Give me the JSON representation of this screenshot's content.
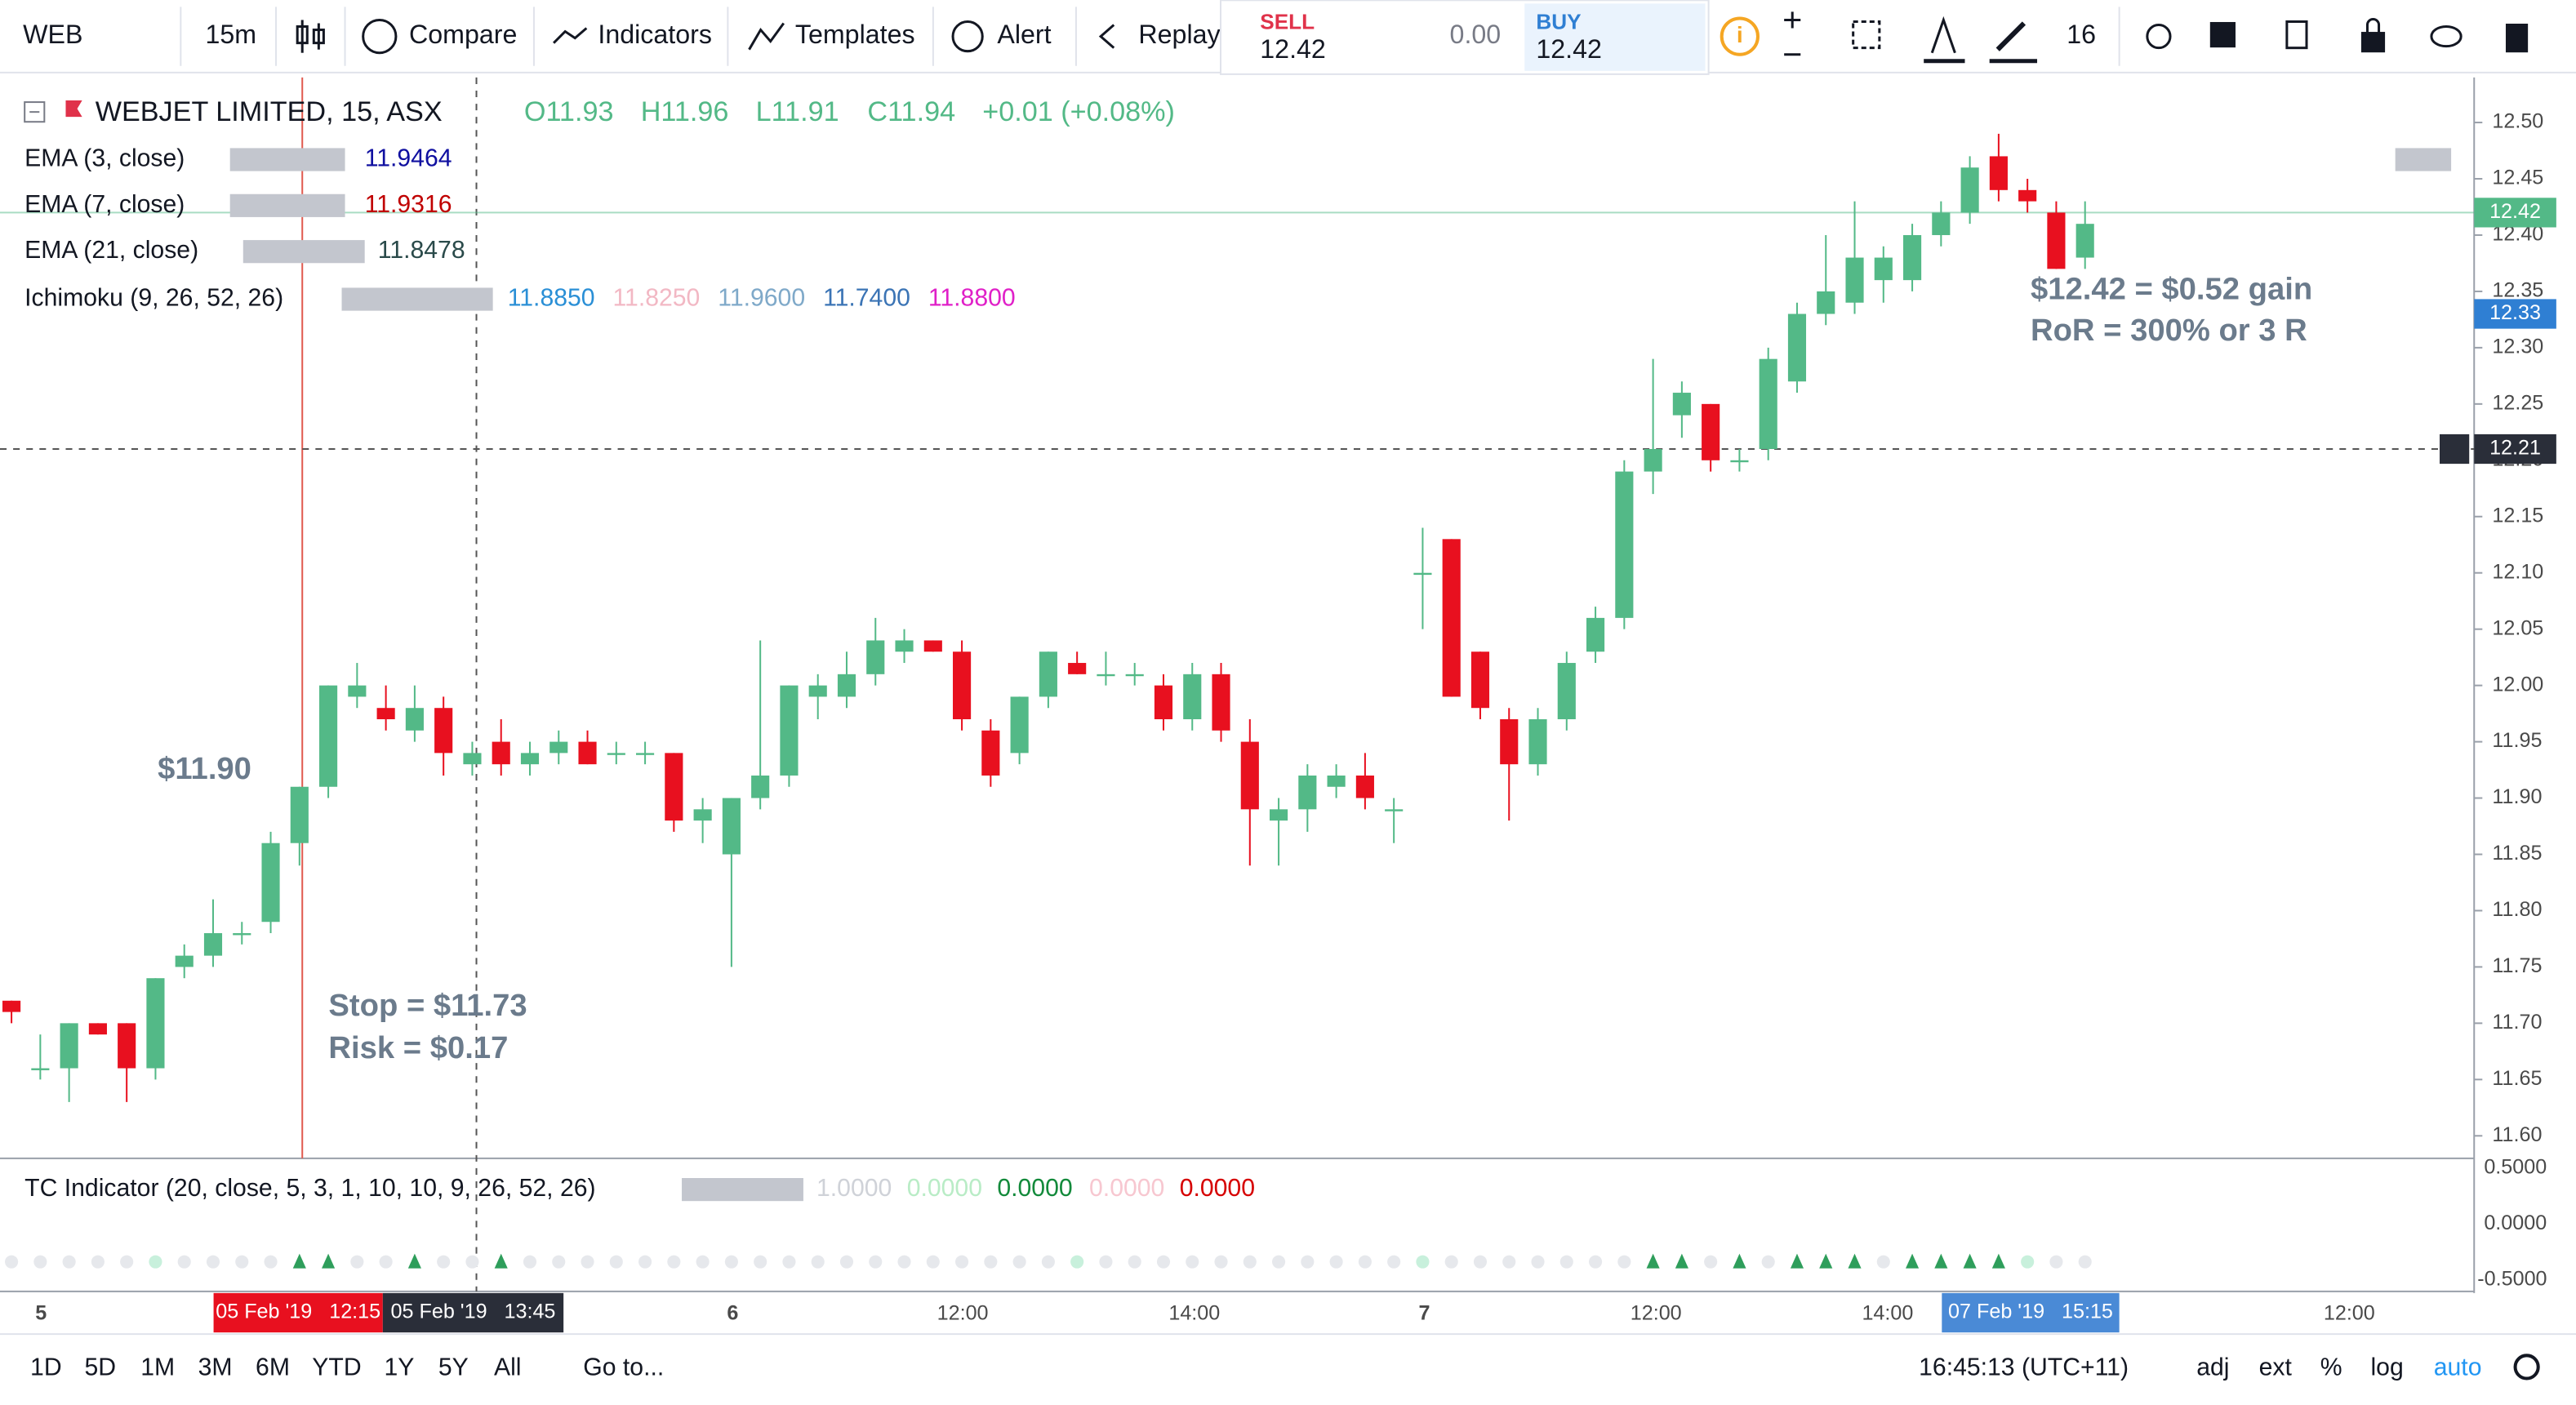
{
  "toolbar": {
    "symbol": "WEB",
    "interval": "15m",
    "compare": "Compare",
    "indicators": "Indicators",
    "templates": "Templates",
    "alert": "Alert",
    "replay": "Replay",
    "sell_label": "SELL",
    "sell_price": "12.42",
    "spread": "0.00",
    "buy_label": "BUY",
    "buy_price": "12.42",
    "font_size": "16"
  },
  "legend": {
    "title": "WEBJET LIMITED, 15, ASX",
    "open": "O11.93",
    "high": "H11.96",
    "low": "L11.91",
    "close": "C11.94",
    "change": "+0.01 (+0.08%)",
    "indicators": [
      {
        "name": "EMA (3, close)",
        "values": [
          "11.9464"
        ]
      },
      {
        "name": "EMA (7, close)",
        "values": [
          "11.9316"
        ]
      },
      {
        "name": "EMA (21, close)",
        "values": [
          "11.8478"
        ]
      },
      {
        "name": "Ichimoku (9, 26, 52, 26)",
        "values": [
          "11.8850",
          "11.8250",
          "11.9600",
          "11.7400",
          "11.8800"
        ]
      }
    ]
  },
  "annotations": [
    "$11.90",
    "Stop = $11.73",
    "Risk = $0.17",
    "$12.42 = $0.52 gain",
    "RoR = 300% or 3 R"
  ],
  "chart_data": {
    "type": "candlestick",
    "up_color": "#53b987",
    "down_color": "#e8101f",
    "open": [
      11.72,
      11.66,
      11.66,
      11.7,
      11.7,
      11.66,
      11.75,
      11.76,
      11.78,
      11.79,
      11.86,
      11.91,
      11.99,
      11.98,
      11.96,
      11.98,
      11.93,
      11.95,
      11.93,
      11.94,
      11.95,
      11.94,
      11.94,
      11.94,
      11.88,
      11.85,
      11.9,
      11.92,
      11.99,
      11.99,
      12.01,
      12.03,
      12.04,
      12.03,
      11.96,
      11.94,
      11.99,
      12.02,
      12.01,
      12.01,
      12.0,
      11.97,
      12.01,
      11.95,
      11.88,
      11.89,
      11.91,
      11.92,
      11.89,
      12.1,
      12.13,
      12.03,
      11.97,
      11.93,
      11.97,
      12.03,
      12.06,
      12.19,
      12.24,
      12.25,
      12.2,
      12.21,
      12.27,
      12.33,
      12.34,
      12.36,
      12.36,
      12.4,
      12.42,
      12.47,
      12.44,
      12.42,
      12.38
    ],
    "high": [
      11.72,
      11.69,
      11.7,
      11.7,
      11.7,
      11.74,
      11.77,
      11.81,
      11.79,
      11.87,
      11.91,
      12.0,
      12.02,
      12.0,
      12.0,
      11.99,
      11.95,
      11.97,
      11.95,
      11.96,
      11.96,
      11.95,
      11.95,
      11.94,
      11.9,
      11.9,
      12.04,
      12.0,
      12.01,
      12.03,
      12.06,
      12.05,
      12.04,
      12.04,
      11.97,
      11.99,
      12.03,
      12.03,
      12.03,
      12.02,
      12.01,
      12.02,
      12.02,
      11.97,
      11.9,
      11.93,
      11.93,
      11.94,
      11.9,
      12.14,
      12.13,
      12.03,
      11.98,
      11.98,
      12.03,
      12.07,
      12.2,
      12.29,
      12.27,
      12.25,
      12.21,
      12.3,
      12.34,
      12.4,
      12.43,
      12.39,
      12.41,
      12.43,
      12.47,
      12.49,
      12.45,
      12.43,
      12.43
    ],
    "low": [
      11.7,
      11.65,
      11.63,
      11.69,
      11.63,
      11.65,
      11.74,
      11.75,
      11.77,
      11.78,
      11.84,
      11.9,
      11.98,
      11.96,
      11.95,
      11.92,
      11.92,
      11.92,
      11.92,
      11.93,
      11.93,
      11.93,
      11.93,
      11.87,
      11.86,
      11.75,
      11.89,
      11.91,
      11.97,
      11.98,
      12.0,
      12.02,
      12.03,
      11.96,
      11.91,
      11.93,
      11.98,
      12.01,
      12.0,
      12.0,
      11.96,
      11.96,
      11.95,
      11.84,
      11.84,
      11.87,
      11.9,
      11.89,
      11.86,
      12.05,
      11.99,
      11.97,
      11.88,
      11.92,
      11.96,
      12.02,
      12.05,
      12.17,
      12.22,
      12.19,
      12.19,
      12.2,
      12.26,
      12.32,
      12.33,
      12.34,
      12.35,
      12.39,
      12.41,
      12.43,
      12.42,
      12.37,
      12.37
    ],
    "close": [
      11.71,
      11.66,
      11.7,
      11.69,
      11.66,
      11.74,
      11.76,
      11.78,
      11.78,
      11.86,
      11.91,
      12.0,
      12.0,
      11.97,
      11.98,
      11.94,
      11.94,
      11.93,
      11.94,
      11.95,
      11.93,
      11.94,
      11.94,
      11.88,
      11.89,
      11.9,
      11.92,
      12.0,
      12.0,
      12.01,
      12.04,
      12.04,
      12.03,
      11.97,
      11.92,
      11.99,
      12.03,
      12.01,
      12.01,
      12.01,
      11.97,
      12.01,
      11.96,
      11.89,
      11.89,
      11.92,
      11.92,
      11.9,
      11.89,
      12.1,
      11.99,
      11.98,
      11.93,
      11.97,
      12.02,
      12.06,
      12.19,
      12.21,
      12.26,
      12.2,
      12.2,
      12.29,
      12.33,
      12.35,
      12.38,
      12.38,
      12.4,
      12.42,
      12.46,
      12.44,
      12.43,
      12.37,
      12.41
    ],
    "ylim": [
      11.58,
      12.54
    ],
    "yticks": [
      {
        "value": 11.6,
        "label": "11.60"
      },
      11.65,
      {
        "value": 11.7,
        "label": "11.70"
      },
      11.75,
      {
        "value": 11.8,
        "label": "11.80"
      },
      11.85,
      {
        "value": 11.9,
        "label": "11.90"
      },
      11.95,
      {
        "value": 12,
        "label": "12.00"
      },
      12.05,
      {
        "value": 12.1,
        "label": "12.10"
      },
      12.15,
      {
        "value": 12.2,
        "label": "12.20"
      },
      12.25,
      {
        "value": 12.3,
        "label": "12.30"
      },
      12.35,
      {
        "value": 12.4,
        "label": "12.40"
      },
      12.45,
      {
        "value": 12.5,
        "label": "12.50"
      }
    ],
    "markers": [
      12.42,
      12.33,
      12.21
    ],
    "marker_colors": [
      "#53b987",
      "#2f7fd3",
      "#2a2e39"
    ]
  },
  "time_axis": {
    "labels": [
      "5",
      "6",
      "12:00",
      "14:00",
      "7",
      "12:00",
      "14:00",
      "12:00"
    ],
    "cursor_labels": [
      "05 Feb '19   12:15",
      "05 Feb '19   13:45",
      "07 Feb '19   15:15"
    ]
  },
  "tc_pane": {
    "title": "TC Indicator (20, close, 5, 3, 1, 10, 10, 9, 26, 52, 26)",
    "values": [
      "1.0000",
      "0.0000",
      "0.0000",
      "0.0000",
      "0.0000"
    ],
    "axis": [
      "0.5000",
      "0.0000",
      "-0.5000"
    ]
  },
  "bottom_bar": {
    "ranges": [
      "1D",
      "5D",
      "1M",
      "3M",
      "6M",
      "YTD",
      "1Y",
      "5Y",
      "All"
    ],
    "goto": "Go to...",
    "clock": "16:45:13 (UTC+11)",
    "options": [
      "adj",
      "ext",
      "%",
      "log",
      "auto"
    ]
  }
}
